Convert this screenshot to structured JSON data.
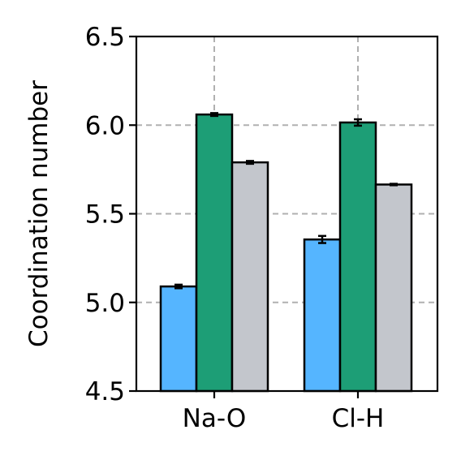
{
  "chart_data": {
    "type": "bar",
    "categories": [
      "Na-O",
      "Cl-H"
    ],
    "series": [
      {
        "values": [
          5.09,
          5.355
        ],
        "errors": [
          0.01,
          0.02
        ],
        "color": "#55b5ff"
      },
      {
        "values": [
          6.06,
          6.015
        ],
        "errors": [
          0.008,
          0.018
        ],
        "color": "#1d9e76"
      },
      {
        "values": [
          5.79,
          5.665
        ],
        "errors": [
          0.008,
          0.004
        ],
        "color": "#c3c6cc"
      }
    ],
    "title": "",
    "xlabel": "",
    "ylabel": "Coordination number",
    "ylim": [
      4.5,
      6.5
    ],
    "yticks": [
      "4.5",
      "5.0",
      "5.5",
      "6.0",
      "6.5"
    ],
    "grid": true,
    "legend": "none"
  }
}
